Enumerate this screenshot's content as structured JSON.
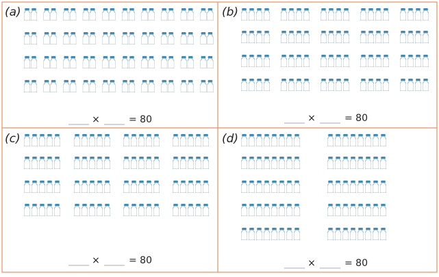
{
  "panels": [
    {
      "label": "(a)",
      "times": "×",
      "equals": "= 80"
    },
    {
      "label": "(b)",
      "times": "×",
      "equals": "= 80"
    },
    {
      "label": "(c)",
      "times": "×",
      "equals": "= 80"
    },
    {
      "label": "(d)",
      "times": "×",
      "equals": "= 80"
    }
  ]
}
